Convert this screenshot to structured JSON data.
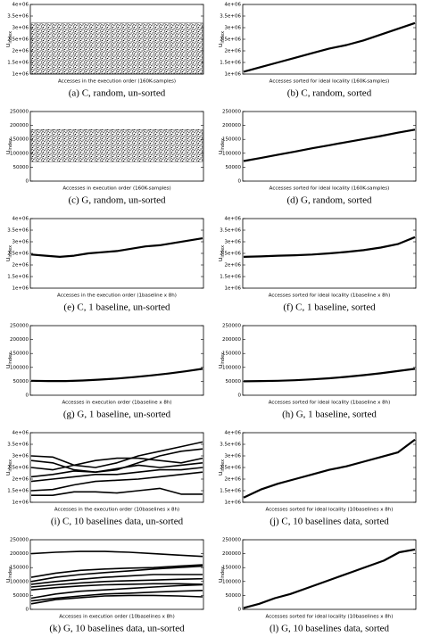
{
  "chart_data": [
    {
      "type": "band",
      "caption": "(a) C, random, un-sorted",
      "xlabel": "Accesses in the execution order (160K-samples)",
      "ylabel": "u",
      "ylabel_sub": "index",
      "color": "#000000",
      "ylim": [
        1000000,
        4000000
      ],
      "yticks": [
        {
          "value": 1000000,
          "label": "1e+06"
        },
        {
          "value": 1500000,
          "label": "1.5e+06"
        },
        {
          "value": 2000000,
          "label": "2e+06"
        },
        {
          "value": 2500000,
          "label": "2.5e+06"
        },
        {
          "value": 3000000,
          "label": "3e+06"
        },
        {
          "value": 3500000,
          "label": "3.5e+06"
        },
        {
          "value": 4000000,
          "label": "4e+06"
        }
      ],
      "range": [
        1000000,
        3200000
      ]
    },
    {
      "type": "line",
      "caption": "(b) C, random, sorted",
      "xlabel": "Accesses sorted for ideal locality (160K-samples)",
      "ylabel": "u",
      "ylabel_sub": "index",
      "color": "#000000",
      "ylim": [
        1000000,
        4000000
      ],
      "yticks": [
        {
          "value": 1000000,
          "label": "1e+06"
        },
        {
          "value": 1500000,
          "label": "1.5e+06"
        },
        {
          "value": 2000000,
          "label": "2e+06"
        },
        {
          "value": 2500000,
          "label": "2.5e+06"
        },
        {
          "value": 3000000,
          "label": "3e+06"
        },
        {
          "value": 3500000,
          "label": "3.5e+06"
        },
        {
          "value": 4000000,
          "label": "4e+06"
        }
      ],
      "series": [
        {
          "values": [
            1100000,
            1300000,
            1500000,
            1700000,
            1900000,
            2100000,
            2250000,
            2450000,
            2700000,
            2950000,
            3200000
          ]
        }
      ]
    },
    {
      "type": "band",
      "caption": "(c) G, random, un-sorted",
      "xlabel": "Accesses in execution order (160K-samples)",
      "ylabel": "u",
      "ylabel_sub": "index",
      "color": "#000000",
      "ylim": [
        0,
        250000
      ],
      "yticks": [
        0,
        50000,
        100000,
        150000,
        200000,
        250000
      ],
      "range": [
        70000,
        185000
      ]
    },
    {
      "type": "line",
      "caption": "(d) G, random, sorted",
      "xlabel": "Accesses sorted for ideal locality (160K-samples)",
      "ylabel": "u",
      "ylabel_sub": "index",
      "color": "#000000",
      "ylim": [
        0,
        250000
      ],
      "yticks": [
        0,
        50000,
        100000,
        150000,
        200000,
        250000
      ],
      "series": [
        {
          "values": [
            72000,
            83000,
            95000,
            106000,
            118000,
            129000,
            140000,
            151000,
            162000,
            174000,
            185000
          ]
        }
      ]
    },
    {
      "type": "line",
      "caption": "(e) C, 1 baseline, un-sorted",
      "xlabel": "Accesses in the execution order (1baseline x 8h)",
      "ylabel": "u",
      "ylabel_sub": "index",
      "color": "#000000",
      "ylim": [
        1000000,
        4000000
      ],
      "yticks": [
        {
          "value": 1000000,
          "label": "1e+06"
        },
        {
          "value": 1500000,
          "label": "1.5e+06"
        },
        {
          "value": 2000000,
          "label": "2e+06"
        },
        {
          "value": 2500000,
          "label": "2.5e+06"
        },
        {
          "value": 3000000,
          "label": "3e+06"
        },
        {
          "value": 3500000,
          "label": "3.5e+06"
        },
        {
          "value": 4000000,
          "label": "4e+06"
        }
      ],
      "series": [
        {
          "values": [
            2450000,
            2400000,
            2350000,
            2400000,
            2500000,
            2550000,
            2600000,
            2700000,
            2800000,
            2850000,
            2950000,
            3050000,
            3150000
          ]
        }
      ]
    },
    {
      "type": "line",
      "caption": "(f) C, 1 baseline, sorted",
      "xlabel": "Accesses sorted for ideal locality (1baseline x 8h)",
      "ylabel": "u",
      "ylabel_sub": "index",
      "color": "#000000",
      "ylim": [
        1000000,
        4000000
      ],
      "yticks": [
        {
          "value": 1000000,
          "label": "1e+06"
        },
        {
          "value": 1500000,
          "label": "1.5e+06"
        },
        {
          "value": 2000000,
          "label": "2e+06"
        },
        {
          "value": 2500000,
          "label": "2.5e+06"
        },
        {
          "value": 3000000,
          "label": "3e+06"
        },
        {
          "value": 3500000,
          "label": "3.5e+06"
        },
        {
          "value": 4000000,
          "label": "4e+06"
        }
      ],
      "series": [
        {
          "values": [
            2350000,
            2370000,
            2400000,
            2420000,
            2450000,
            2500000,
            2560000,
            2640000,
            2750000,
            2900000,
            3200000
          ]
        }
      ]
    },
    {
      "type": "line",
      "caption": "(g) G, 1 baseline, un-sorted",
      "xlabel": "Accesses in execution order (1baseline x 8h)",
      "ylabel": "u",
      "ylabel_sub": "index",
      "color": "#000000",
      "ylim": [
        0,
        250000
      ],
      "yticks": [
        0,
        50000,
        100000,
        150000,
        200000,
        250000
      ],
      "series": [
        {
          "values": [
            52000,
            51000,
            51000,
            53000,
            56000,
            60000,
            65000,
            71000,
            78000,
            86000,
            95000
          ]
        }
      ]
    },
    {
      "type": "line",
      "caption": "(h) G, 1 baseline, sorted",
      "xlabel": "Accesses sorted for ideal locality (1baseline x 8h)",
      "ylabel": "u",
      "ylabel_sub": "index",
      "color": "#000000",
      "ylim": [
        0,
        250000
      ],
      "yticks": [
        0,
        50000,
        100000,
        150000,
        200000,
        250000
      ],
      "series": [
        {
          "values": [
            50000,
            51000,
            52000,
            54000,
            57000,
            61000,
            66000,
            72000,
            79000,
            87000,
            95000
          ]
        }
      ]
    },
    {
      "type": "line",
      "caption": "(i) C, 10 baselines data, un-sorted",
      "xlabel": "Accesses in the execution order (10baselines x 8h)",
      "ylabel": "u",
      "ylabel_sub": "index",
      "color": "#000000",
      "ylim": [
        1000000,
        4000000
      ],
      "yticks": [
        {
          "value": 1000000,
          "label": "1e+06"
        },
        {
          "value": 1500000,
          "label": "1.5e+06"
        },
        {
          "value": 2000000,
          "label": "2e+06"
        },
        {
          "value": 2500000,
          "label": "2.5e+06"
        },
        {
          "value": 3000000,
          "label": "3e+06"
        },
        {
          "value": 3500000,
          "label": "3.5e+06"
        },
        {
          "value": 4000000,
          "label": "4e+06"
        }
      ],
      "series": [
        {
          "values": [
            3000000,
            2950000,
            2600000,
            2500000,
            2700000,
            3000000,
            3200000,
            3400000,
            3600000
          ]
        },
        {
          "values": [
            2800000,
            2700000,
            2400000,
            2300000,
            2400000,
            2700000,
            3000000,
            3200000,
            3300000
          ]
        },
        {
          "values": [
            2500000,
            2400000,
            2600000,
            2800000,
            2900000,
            2900000,
            2800000,
            2700000,
            2900000
          ]
        },
        {
          "values": [
            2100000,
            2200000,
            2350000,
            2300000,
            2450000,
            2600000,
            2500000,
            2600000,
            2700000
          ]
        },
        {
          "values": [
            1900000,
            2000000,
            2100000,
            2200000,
            2200000,
            2300000,
            2400000,
            2400000,
            2500000
          ]
        },
        {
          "values": [
            1500000,
            1550000,
            1750000,
            1900000,
            1950000,
            2000000,
            2100000,
            2200000,
            2300000
          ]
        },
        {
          "values": [
            1300000,
            1300000,
            1450000,
            1450000,
            1400000,
            1500000,
            1600000,
            1350000,
            1350000
          ]
        }
      ]
    },
    {
      "type": "line",
      "caption": "(j) C, 10 baselines data, sorted",
      "xlabel": "Accesses sorted for ideal locality (10baselines x 8h)",
      "ylabel": "u",
      "ylabel_sub": "index",
      "color": "#000000",
      "ylim": [
        1000000,
        4000000
      ],
      "yticks": [
        {
          "value": 1000000,
          "label": "1e+06"
        },
        {
          "value": 1500000,
          "label": "1.5e+06"
        },
        {
          "value": 2000000,
          "label": "2e+06"
        },
        {
          "value": 2500000,
          "label": "2.5e+06"
        },
        {
          "value": 3000000,
          "label": "3e+06"
        },
        {
          "value": 3500000,
          "label": "3.5e+06"
        },
        {
          "value": 4000000,
          "label": "4e+06"
        }
      ],
      "series": [
        {
          "values": [
            1200000,
            1550000,
            1800000,
            2000000,
            2200000,
            2400000,
            2550000,
            2750000,
            2950000,
            3150000,
            3700000
          ]
        }
      ]
    },
    {
      "type": "line",
      "caption": "(k) G, 10 baselines data, un-sorted",
      "xlabel": "Accesses in execution order (10baselines x 8h)",
      "ylabel": "u",
      "ylabel_sub": "index",
      "color": "#000000",
      "ylim": [
        0,
        250000
      ],
      "yticks": [
        0,
        50000,
        100000,
        150000,
        200000,
        250000
      ],
      "series": [
        {
          "values": [
            200000,
            205000,
            208000,
            208000,
            205000,
            200000,
            195000,
            190000
          ]
        },
        {
          "values": [
            115000,
            130000,
            140000,
            145000,
            148000,
            150000,
            155000,
            160000
          ]
        },
        {
          "values": [
            100000,
            115000,
            125000,
            132000,
            138000,
            145000,
            150000,
            155000
          ]
        },
        {
          "values": [
            90000,
            100000,
            108000,
            115000,
            120000,
            125000,
            125000,
            125000
          ]
        },
        {
          "values": [
            80000,
            88000,
            95000,
            100000,
            103000,
            105000,
            108000,
            110000
          ]
        },
        {
          "values": [
            70000,
            78000,
            84000,
            88000,
            90000,
            92000,
            92000,
            90000
          ]
        },
        {
          "values": [
            40000,
            55000,
            65000,
            70000,
            75000,
            80000,
            85000,
            88000
          ]
        },
        {
          "values": [
            30000,
            40000,
            48000,
            55000,
            58000,
            62000,
            65000,
            68000
          ]
        },
        {
          "values": [
            20000,
            35000,
            42000,
            48000,
            50000,
            50000,
            48000,
            45000
          ]
        }
      ]
    },
    {
      "type": "line",
      "caption": "(l) G, 10 baselines data, sorted",
      "xlabel": "Accesses sorted for ideal locality (10baselines x 8h)",
      "ylabel": "u",
      "ylabel_sub": "index",
      "color": "#000000",
      "ylim": [
        0,
        250000
      ],
      "yticks": [
        0,
        50000,
        100000,
        150000,
        200000,
        250000
      ],
      "series": [
        {
          "values": [
            5000,
            20000,
            40000,
            55000,
            75000,
            95000,
            115000,
            135000,
            155000,
            175000,
            205000,
            215000
          ]
        }
      ]
    }
  ]
}
